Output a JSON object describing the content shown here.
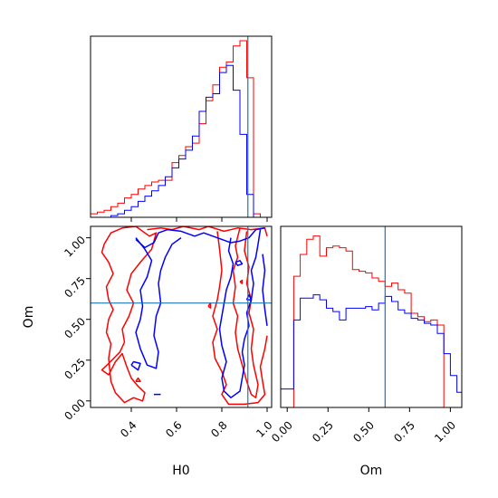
{
  "chart_data": [
    {
      "type": "corner",
      "parameters": [
        {
          "name": "H0",
          "range": [
            0.22,
            1.02
          ],
          "ticks": [
            0.4,
            0.6,
            0.8,
            1.0
          ],
          "tick_labels": [
            "0.4",
            "0.6",
            "0.8",
            "1.0"
          ],
          "truth": 0.915
        },
        {
          "name": "Om",
          "range": [
            -0.04,
            1.07
          ],
          "ticks": [
            0.0,
            0.25,
            0.5,
            0.75,
            1.0
          ],
          "tick_labels": [
            "0.00",
            "0.25",
            "0.50",
            "0.75",
            "1.00"
          ],
          "truth": 0.6
        }
      ],
      "colors": {
        "series_a": "#ff0000",
        "series_b": "#0000ff",
        "truth": "#1f77b4"
      },
      "hist_H0": {
        "edges": [
          0.22,
          0.25,
          0.28,
          0.31,
          0.34,
          0.37,
          0.4,
          0.43,
          0.46,
          0.49,
          0.52,
          0.55,
          0.58,
          0.61,
          0.64,
          0.67,
          0.7,
          0.73,
          0.76,
          0.79,
          0.82,
          0.85,
          0.88,
          0.91,
          0.94,
          0.97,
          1.0
        ],
        "series_a": [
          0.02,
          0.03,
          0.04,
          0.06,
          0.08,
          0.11,
          0.13,
          0.16,
          0.18,
          0.2,
          0.21,
          0.21,
          0.31,
          0.35,
          0.4,
          0.42,
          0.53,
          0.66,
          0.75,
          0.85,
          0.88,
          0.97,
          1.0,
          0.79,
          0.02,
          0.0
        ],
        "series_b": [
          0.0,
          0.0,
          0.0,
          0.01,
          0.02,
          0.04,
          0.06,
          0.09,
          0.12,
          0.15,
          0.18,
          0.23,
          0.28,
          0.33,
          0.38,
          0.46,
          0.6,
          0.68,
          0.7,
          0.82,
          0.86,
          0.72,
          0.47,
          0.13,
          0.0,
          0.0
        ]
      },
      "hist_Om": {
        "edges": [
          -0.04,
          0.0,
          0.04,
          0.08,
          0.12,
          0.16,
          0.2,
          0.24,
          0.28,
          0.32,
          0.36,
          0.4,
          0.44,
          0.48,
          0.52,
          0.56,
          0.6,
          0.64,
          0.68,
          0.72,
          0.76,
          0.8,
          0.84,
          0.88,
          0.92,
          0.96,
          1.0,
          1.04,
          1.07
        ],
        "series_a": [
          0.0,
          0.0,
          0.78,
          0.91,
          1.0,
          1.02,
          0.9,
          0.95,
          0.96,
          0.95,
          0.93,
          0.82,
          0.81,
          0.8,
          0.77,
          0.75,
          0.72,
          0.74,
          0.7,
          0.68,
          0.56,
          0.54,
          0.51,
          0.52,
          0.49,
          0.0,
          0.0,
          0.0
        ],
        "series_b": [
          0.11,
          0.11,
          0.52,
          0.65,
          0.65,
          0.67,
          0.64,
          0.59,
          0.57,
          0.52,
          0.59,
          0.59,
          0.59,
          0.6,
          0.58,
          0.62,
          0.66,
          0.63,
          0.58,
          0.56,
          0.53,
          0.52,
          0.5,
          0.49,
          0.44,
          0.32,
          0.19,
          0.09
        ]
      },
      "contours_2d": {
        "series_a": [
          [
            [
              0.28,
              0.96
            ],
            [
              0.31,
              1.03
            ],
            [
              0.36,
              1.06
            ],
            [
              0.42,
              1.07
            ],
            [
              0.48,
              1.01
            ],
            [
              0.51,
              1.03
            ],
            [
              0.49,
              0.93
            ],
            [
              0.44,
              0.85
            ],
            [
              0.4,
              0.78
            ],
            [
              0.38,
              0.68
            ],
            [
              0.41,
              0.6
            ],
            [
              0.39,
              0.52
            ],
            [
              0.36,
              0.44
            ],
            [
              0.37,
              0.36
            ],
            [
              0.35,
              0.3
            ],
            [
              0.3,
              0.23
            ],
            [
              0.27,
              0.19
            ],
            [
              0.3,
              0.16
            ],
            [
              0.33,
              0.24
            ],
            [
              0.36,
              0.29
            ],
            [
              0.38,
              0.21
            ],
            [
              0.4,
              0.14
            ],
            [
              0.43,
              0.09
            ],
            [
              0.46,
              0.05
            ],
            [
              0.45,
              0.0
            ],
            [
              0.41,
              0.02
            ],
            [
              0.37,
              -0.01
            ],
            [
              0.33,
              0.05
            ],
            [
              0.31,
              0.12
            ],
            [
              0.3,
              0.26
            ],
            [
              0.31,
              0.35
            ],
            [
              0.29,
              0.42
            ],
            [
              0.3,
              0.5
            ],
            [
              0.32,
              0.56
            ],
            [
              0.3,
              0.62
            ],
            [
              0.29,
              0.7
            ],
            [
              0.32,
              0.78
            ],
            [
              0.3,
              0.85
            ],
            [
              0.27,
              0.91
            ],
            [
              0.28,
              0.96
            ]
          ],
          [
            [
              0.47,
              1.05
            ],
            [
              0.53,
              1.06
            ],
            [
              0.58,
              1.05
            ],
            [
              0.63,
              1.07
            ],
            [
              0.7,
              1.05
            ],
            [
              0.74,
              1.07
            ],
            [
              0.81,
              1.04
            ],
            [
              0.87,
              1.06
            ],
            [
              0.93,
              1.05
            ],
            [
              0.99,
              1.06
            ],
            [
              1.0,
              1.01
            ]
          ],
          [
            [
              0.78,
              1.04
            ],
            [
              0.79,
              0.93
            ],
            [
              0.8,
              0.8
            ],
            [
              0.79,
              0.7
            ],
            [
              0.78,
              0.62
            ],
            [
              0.76,
              0.52
            ],
            [
              0.78,
              0.44
            ],
            [
              0.76,
              0.36
            ],
            [
              0.77,
              0.26
            ],
            [
              0.8,
              0.18
            ],
            [
              0.82,
              0.1
            ],
            [
              0.8,
              0.04
            ],
            [
              0.83,
              -0.02
            ],
            [
              0.9,
              -0.02
            ],
            [
              0.96,
              -0.01
            ],
            [
              0.99,
              0.04
            ],
            [
              0.98,
              0.12
            ],
            [
              0.97,
              0.21
            ],
            [
              0.99,
              0.32
            ],
            [
              1.0,
              0.4
            ]
          ],
          [
            [
              0.88,
              1.06
            ],
            [
              0.86,
              0.95
            ],
            [
              0.87,
              0.88
            ],
            [
              0.85,
              0.8
            ],
            [
              0.86,
              0.7
            ],
            [
              0.85,
              0.6
            ],
            [
              0.87,
              0.52
            ],
            [
              0.86,
              0.42
            ],
            [
              0.87,
              0.32
            ],
            [
              0.89,
              0.22
            ],
            [
              0.91,
              0.12
            ],
            [
              0.93,
              0.04
            ],
            [
              0.95,
              0.02
            ],
            [
              0.96,
              0.1
            ],
            [
              0.94,
              0.22
            ],
            [
              0.93,
              0.32
            ],
            [
              0.94,
              0.44
            ],
            [
              0.92,
              0.54
            ],
            [
              0.93,
              0.62
            ],
            [
              0.91,
              0.72
            ],
            [
              0.92,
              0.82
            ],
            [
              0.9,
              0.92
            ],
            [
              0.91,
              1.04
            ]
          ],
          [
            [
              0.74,
              0.58
            ],
            [
              0.75,
              0.6
            ],
            [
              0.75,
              0.57
            ],
            [
              0.74,
              0.58
            ]
          ],
          [
            [
              0.88,
              0.73
            ],
            [
              0.89,
              0.74
            ],
            [
              0.89,
              0.72
            ],
            [
              0.88,
              0.73
            ]
          ],
          [
            [
              0.42,
              0.12
            ],
            [
              0.43,
              0.14
            ],
            [
              0.44,
              0.12
            ],
            [
              0.42,
              0.12
            ]
          ]
        ],
        "series_b": [
          [
            [
              0.42,
              0.99
            ],
            [
              0.46,
              0.94
            ],
            [
              0.5,
              0.97
            ],
            [
              0.52,
              1.03
            ],
            [
              0.56,
              1.05
            ],
            [
              0.62,
              1.04
            ],
            [
              0.68,
              1.01
            ],
            [
              0.72,
              1.03
            ],
            [
              0.76,
              1.01
            ],
            [
              0.8,
              0.99
            ],
            [
              0.84,
              0.97
            ],
            [
              0.88,
              0.98
            ],
            [
              0.92,
              1.0
            ],
            [
              0.95,
              1.05
            ],
            [
              0.99,
              1.06
            ]
          ],
          [
            [
              0.42,
              1.0
            ],
            [
              0.46,
              0.93
            ],
            [
              0.49,
              0.86
            ],
            [
              0.47,
              0.76
            ],
            [
              0.44,
              0.68
            ],
            [
              0.45,
              0.58
            ],
            [
              0.44,
              0.5
            ],
            [
              0.42,
              0.42
            ],
            [
              0.44,
              0.32
            ],
            [
              0.47,
              0.22
            ],
            [
              0.51,
              0.2
            ],
            [
              0.52,
              0.3
            ],
            [
              0.5,
              0.4
            ],
            [
              0.51,
              0.52
            ],
            [
              0.53,
              0.6
            ],
            [
              0.52,
              0.72
            ],
            [
              0.53,
              0.8
            ],
            [
              0.55,
              0.88
            ],
            [
              0.58,
              0.96
            ],
            [
              0.62,
              1.0
            ]
          ],
          [
            [
              0.4,
              0.22
            ],
            [
              0.43,
              0.19
            ],
            [
              0.44,
              0.23
            ],
            [
              0.41,
              0.24
            ],
            [
              0.4,
              0.22
            ]
          ],
          [
            [
              0.5,
              0.04
            ],
            [
              0.53,
              0.04
            ]
          ],
          [
            [
              0.84,
              1.0
            ],
            [
              0.83,
              0.92
            ],
            [
              0.85,
              0.84
            ],
            [
              0.84,
              0.76
            ],
            [
              0.82,
              0.68
            ],
            [
              0.81,
              0.6
            ],
            [
              0.8,
              0.52
            ],
            [
              0.79,
              0.44
            ],
            [
              0.8,
              0.34
            ],
            [
              0.82,
              0.24
            ],
            [
              0.8,
              0.14
            ],
            [
              0.81,
              0.06
            ],
            [
              0.84,
              0.02
            ],
            [
              0.88,
              0.06
            ],
            [
              0.89,
              0.14
            ],
            [
              0.9,
              0.22
            ],
            [
              0.89,
              0.3
            ],
            [
              0.9,
              0.38
            ],
            [
              0.92,
              0.46
            ],
            [
              0.91,
              0.54
            ],
            [
              0.93,
              0.62
            ],
            [
              0.94,
              0.72
            ],
            [
              0.93,
              0.8
            ],
            [
              0.95,
              0.88
            ],
            [
              0.96,
              0.96
            ],
            [
              0.97,
              1.05
            ]
          ],
          [
            [
              0.86,
              0.85
            ],
            [
              0.88,
              0.86
            ],
            [
              0.89,
              0.84
            ],
            [
              0.87,
              0.83
            ],
            [
              0.86,
              0.85
            ]
          ],
          [
            [
              0.98,
              0.9
            ],
            [
              0.99,
              0.8
            ],
            [
              0.98,
              0.68
            ],
            [
              0.99,
              0.56
            ],
            [
              1.0,
              0.46
            ]
          ],
          [
            [
              0.91,
              0.62
            ],
            [
              0.92,
              0.65
            ],
            [
              0.93,
              0.62
            ],
            [
              0.91,
              0.62
            ]
          ]
        ]
      }
    }
  ]
}
